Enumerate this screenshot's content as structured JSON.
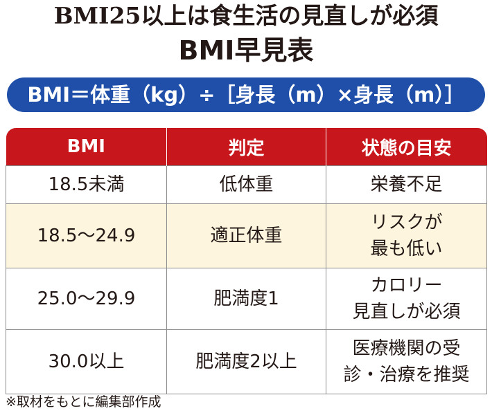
{
  "header": {
    "title": "BMI25以上は食生活の見直しが必須",
    "subtitle": "BMI早見表"
  },
  "formula": "BMI＝体重（kg）÷［身長（m）×身長（m）］",
  "table": {
    "columns": [
      "BMI",
      "判定",
      "状態の目安"
    ],
    "rows": [
      [
        "18.5未満",
        "低体重",
        "栄養不足"
      ],
      [
        "18.5～24.9",
        "適正体重",
        "リスクが\n最も低い"
      ],
      [
        "25.0～29.9",
        "肥満度1",
        "カロリー\n見直しが必須"
      ],
      [
        "30.0以上",
        "肥満度2以上",
        "医療機関の受\n診・治療を推奨"
      ]
    ]
  },
  "footnote": "※取材をもとに編集部作成"
}
